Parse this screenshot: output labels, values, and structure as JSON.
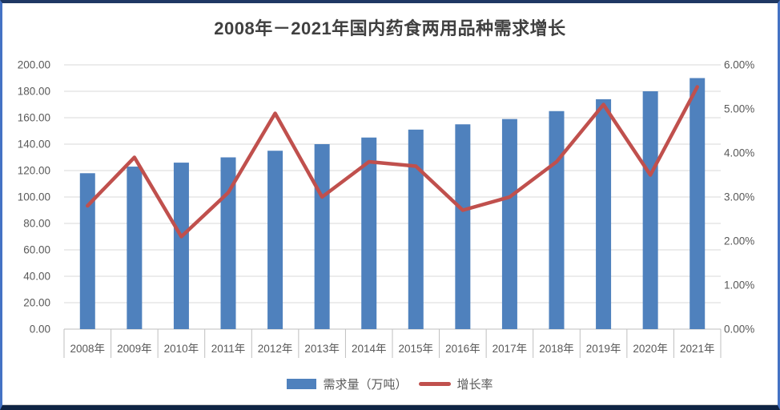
{
  "chart_data": {
    "type": "bar+line combo",
    "title": "2008年－2021年国内药食两用品种需求增长",
    "categories": [
      "2008年",
      "2009年",
      "2010年",
      "2011年",
      "2012年",
      "2013年",
      "2014年",
      "2015年",
      "2016年",
      "2017年",
      "2018年",
      "2019年",
      "2020年",
      "2021年"
    ],
    "series": [
      {
        "name": "需求量（万吨）",
        "type": "bar",
        "axis": "left",
        "color": "#4F81BD",
        "values": [
          118,
          123,
          126,
          130,
          135,
          140,
          145,
          151,
          155,
          159,
          165,
          174,
          180,
          190
        ]
      },
      {
        "name": "增长率",
        "type": "line",
        "axis": "right",
        "color": "#C0504D",
        "values": [
          2.8,
          3.9,
          2.1,
          3.1,
          4.9,
          3.0,
          3.8,
          3.7,
          2.7,
          3.0,
          3.8,
          5.1,
          3.5,
          5.5
        ]
      }
    ],
    "left_axis": {
      "min": 0,
      "max": 200,
      "step": 20,
      "tick_labels": [
        "0.00",
        "20.00",
        "40.00",
        "60.00",
        "80.00",
        "100.00",
        "120.00",
        "140.00",
        "160.00",
        "180.00",
        "200.00"
      ]
    },
    "right_axis": {
      "min": 0,
      "max": 6,
      "step": 1,
      "tick_labels": [
        "0.00%",
        "1.00%",
        "2.00%",
        "3.00%",
        "4.00%",
        "5.00%",
        "6.00%"
      ]
    },
    "grid": true,
    "legend_position": "bottom"
  },
  "colors": {
    "bar": "#4F81BD",
    "line": "#C0504D",
    "gridline": "#D9D9D9",
    "axis_line": "#BFBFBF",
    "axis_text": "#595959",
    "title_text": "#404040",
    "border_side": "#4472C4",
    "border_top": "#1F3864",
    "border_bottom": "#0F2444",
    "background": "#FFFFFF"
  }
}
